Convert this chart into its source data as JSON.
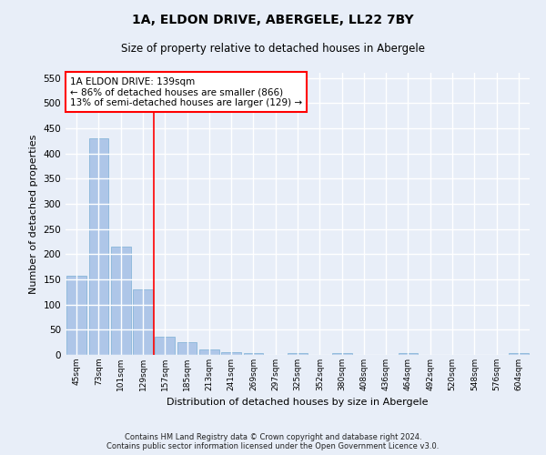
{
  "title": "1A, ELDON DRIVE, ABERGELE, LL22 7BY",
  "subtitle": "Size of property relative to detached houses in Abergele",
  "xlabel": "Distribution of detached houses by size in Abergele",
  "ylabel": "Number of detached properties",
  "bar_labels": [
    "45sqm",
    "73sqm",
    "101sqm",
    "129sqm",
    "157sqm",
    "185sqm",
    "213sqm",
    "241sqm",
    "269sqm",
    "297sqm",
    "325sqm",
    "352sqm",
    "380sqm",
    "408sqm",
    "436sqm",
    "464sqm",
    "492sqm",
    "520sqm",
    "548sqm",
    "576sqm",
    "604sqm"
  ],
  "bar_values": [
    158,
    430,
    215,
    130,
    36,
    26,
    11,
    5,
    3,
    0,
    3,
    0,
    4,
    0,
    0,
    4,
    0,
    0,
    0,
    0,
    4
  ],
  "bar_color": "#aec6e8",
  "bar_edgecolor": "#7aafd4",
  "background_color": "#e8eef8",
  "grid_color": "#ffffff",
  "vline_color": "red",
  "annotation_title": "1A ELDON DRIVE: 139sqm",
  "annotation_line1": "← 86% of detached houses are smaller (866)",
  "annotation_line2": "13% of semi-detached houses are larger (129) →",
  "annotation_box_color": "white",
  "annotation_box_edgecolor": "red",
  "ylim": [
    0,
    560
  ],
  "yticks": [
    0,
    50,
    100,
    150,
    200,
    250,
    300,
    350,
    400,
    450,
    500,
    550
  ],
  "footer_line1": "Contains HM Land Registry data © Crown copyright and database right 2024.",
  "footer_line2": "Contains public sector information licensed under the Open Government Licence v3.0."
}
